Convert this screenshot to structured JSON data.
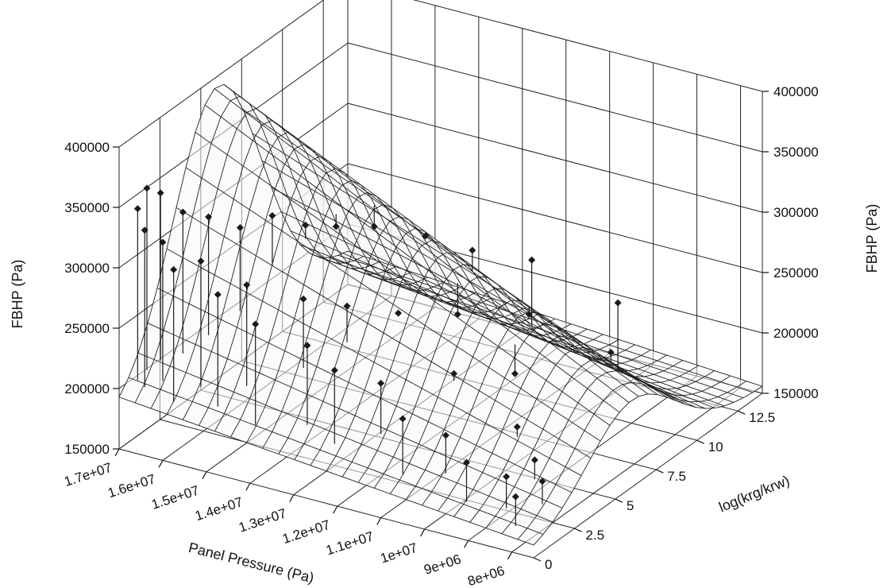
{
  "chart_data": {
    "type": "surface3d_scatter",
    "x_axis": {
      "label": "Panel Pressure (Pa)",
      "range": [
        7500000,
        17000000
      ],
      "ticks": [
        17000000,
        16000000,
        15000000,
        14000000,
        13000000,
        12000000,
        11000000,
        10000000,
        9000000,
        8000000
      ],
      "tick_labels": [
        "1.7e+07",
        "1.6e+07",
        "1.5e+07",
        "1.4e+07",
        "1.3e+07",
        "1.2e+07",
        "1.1e+07",
        "1e+07",
        "9e+06",
        "8e+06"
      ]
    },
    "y_axis": {
      "label": "log(krg/krw)",
      "range": [
        0,
        14
      ],
      "ticks": [
        0,
        2.5,
        5,
        7.5,
        10,
        12.5
      ],
      "tick_labels": [
        "0",
        "2.5",
        "5",
        "7.5",
        "10",
        "12.5"
      ]
    },
    "z_axis": {
      "label": "FBHP (Pa)",
      "range": [
        150000,
        400000
      ],
      "ticks": [
        150000,
        200000,
        250000,
        300000,
        350000,
        400000
      ],
      "tick_labels": [
        "150000",
        "200000",
        "250000",
        "300000",
        "350000",
        "400000"
      ]
    },
    "z_axis_right": {
      "label": "FBHP (Pa)",
      "ticks": [
        150000,
        200000,
        250000,
        300000,
        350000,
        400000
      ],
      "tick_labels": [
        "150000",
        "200000",
        "250000",
        "300000",
        "350000",
        "400000"
      ]
    },
    "surface": {
      "description_values": {
        "peak_fbhp": 390000,
        "peak_log_ratio": 6,
        "min_fbhp_edge": 190000
      }
    },
    "scatter_points": [
      {
        "x": 16800000,
        "y": 0.6,
        "z": 345000
      },
      {
        "x": 16700000,
        "y": 0.9,
        "z": 360000
      },
      {
        "x": 16600000,
        "y": 0.5,
        "z": 330000
      },
      {
        "x": 16500000,
        "y": 1.2,
        "z": 355000
      },
      {
        "x": 16300000,
        "y": 0.8,
        "z": 320000
      },
      {
        "x": 16100000,
        "y": 1.5,
        "z": 340000
      },
      {
        "x": 15900000,
        "y": 0.4,
        "z": 305000
      },
      {
        "x": 15700000,
        "y": 2.0,
        "z": 335000
      },
      {
        "x": 15500000,
        "y": 1.0,
        "z": 310000
      },
      {
        "x": 15200000,
        "y": 2.6,
        "z": 325000
      },
      {
        "x": 15000000,
        "y": 0.7,
        "z": 290000
      },
      {
        "x": 14800000,
        "y": 3.5,
        "z": 330000
      },
      {
        "x": 14600000,
        "y": 1.4,
        "z": 295000
      },
      {
        "x": 14300000,
        "y": 4.2,
        "z": 320000
      },
      {
        "x": 14100000,
        "y": 0.6,
        "z": 275000
      },
      {
        "x": 13900000,
        "y": 5.0,
        "z": 315000
      },
      {
        "x": 13600000,
        "y": 2.2,
        "z": 285000
      },
      {
        "x": 13400000,
        "y": 6.0,
        "z": 310000
      },
      {
        "x": 13100000,
        "y": 1.1,
        "z": 262000
      },
      {
        "x": 12900000,
        "y": 3.0,
        "z": 278000
      },
      {
        "x": 12600000,
        "y": 7.0,
        "z": 300000
      },
      {
        "x": 12400000,
        "y": 0.9,
        "z": 250000
      },
      {
        "x": 12100000,
        "y": 4.0,
        "z": 270000
      },
      {
        "x": 11900000,
        "y": 8.0,
        "z": 285000
      },
      {
        "x": 11600000,
        "y": 1.6,
        "z": 240000
      },
      {
        "x": 11300000,
        "y": 5.5,
        "z": 262000
      },
      {
        "x": 11100000,
        "y": 9.5,
        "z": 270000
      },
      {
        "x": 10800000,
        "y": 0.8,
        "z": 226000
      },
      {
        "x": 10600000,
        "y": 3.4,
        "z": 240000
      },
      {
        "x": 10300000,
        "y": 7.2,
        "z": 255000
      },
      {
        "x": 10000000,
        "y": 1.3,
        "z": 215000
      },
      {
        "x": 9800000,
        "y": 5.0,
        "z": 232000
      },
      {
        "x": 9500000,
        "y": 10.5,
        "z": 240000
      },
      {
        "x": 9300000,
        "y": 0.7,
        "z": 205000
      },
      {
        "x": 9000000,
        "y": 3.0,
        "z": 215000
      },
      {
        "x": 8800000,
        "y": 8.2,
        "z": 228000
      },
      {
        "x": 8500000,
        "y": 1.0,
        "z": 198000
      },
      {
        "x": 8300000,
        "y": 2.2,
        "z": 202000
      },
      {
        "x": 8100000,
        "y": 0.5,
        "z": 190000
      },
      {
        "x": 7900000,
        "y": 1.6,
        "z": 194000
      }
    ]
  }
}
